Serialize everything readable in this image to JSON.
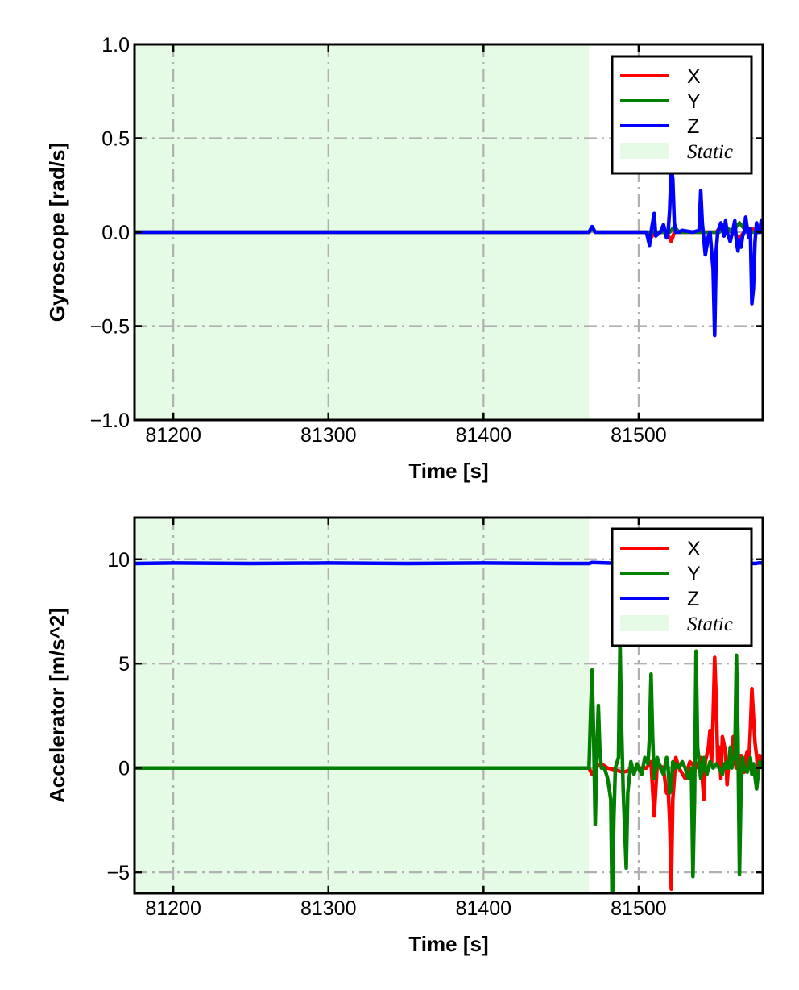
{
  "colors": {
    "X": "#ff0000",
    "Y": "#007f00",
    "Z": "#0000ff",
    "static_fill": "#e6fbe6",
    "grid": "#b0b0b0"
  },
  "chart_data": [
    {
      "type": "line",
      "xlabel": "Time [s]",
      "ylabel": "Gyroscope [rad/s]",
      "xlim": [
        81175,
        81580
      ],
      "ylim": [
        -1.0,
        1.0
      ],
      "xticks": [
        81200,
        81300,
        81400,
        81500
      ],
      "xtick_labels": [
        "81200",
        "81300",
        "81400",
        "81500"
      ],
      "yticks": [
        1.0,
        0.5,
        0.0,
        -0.5,
        -1.0
      ],
      "ytick_labels": [
        "1.0",
        "0.5",
        "0.0",
        "−0.5",
        "−1.0"
      ],
      "grid": true,
      "legend_position": "top-right",
      "legend": [
        "X",
        "Y",
        "Z",
        "Static"
      ],
      "static_region": [
        81175,
        81468
      ],
      "series": [
        {
          "name": "X",
          "color": "#ff0000",
          "x": [
            81175,
            81468,
            81470,
            81472,
            81505,
            81508,
            81510,
            81518,
            81521,
            81523,
            81540,
            81550,
            81553,
            81560,
            81565,
            81568,
            81572,
            81580
          ],
          "y": [
            0.0,
            0.0,
            0.02,
            0.0,
            0.0,
            -0.03,
            0.0,
            0.0,
            -0.05,
            0.0,
            0.0,
            0.0,
            0.03,
            0.0,
            -0.03,
            0.0,
            0.02,
            0.0
          ]
        },
        {
          "name": "Y",
          "color": "#007f00",
          "x": [
            81175,
            81468,
            81470,
            81472,
            81520,
            81523,
            81526,
            81552,
            81555,
            81560,
            81565,
            81570,
            81580
          ],
          "y": [
            0.0,
            0.0,
            0.02,
            0.0,
            0.0,
            0.03,
            0.0,
            0.0,
            0.04,
            0.0,
            0.05,
            0.0,
            0.0
          ]
        },
        {
          "name": "Z",
          "color": "#0000ff",
          "x": [
            81175,
            81468,
            81470,
            81472,
            81505,
            81507,
            81508,
            81510,
            81511,
            81514,
            81516,
            81518,
            81519,
            81520,
            81521,
            81522,
            81523,
            81524,
            81525,
            81526,
            81528,
            81535,
            81539,
            81540,
            81541,
            81543,
            81545,
            81546,
            81548,
            81549,
            81550,
            81551,
            81553,
            81555,
            81556,
            81557,
            81559,
            81561,
            81562,
            81563,
            81564,
            81565,
            81566,
            81567,
            81568,
            81569,
            81570,
            81571,
            81572,
            81573,
            81574,
            81575,
            81576,
            81577,
            81578,
            81579,
            81580
          ],
          "y": [
            0.0,
            0.0,
            0.03,
            0.0,
            0.0,
            -0.07,
            0.0,
            0.1,
            -0.02,
            0.0,
            0.04,
            -0.03,
            0.0,
            0.12,
            0.35,
            0.28,
            0.05,
            0.0,
            0.0,
            0.0,
            0.01,
            0.0,
            0.01,
            0.22,
            0.05,
            -0.12,
            -0.02,
            0.0,
            -0.2,
            -0.55,
            -0.1,
            0.0,
            0.05,
            -0.02,
            0.06,
            0.0,
            -0.05,
            0.02,
            0.06,
            -0.05,
            -0.1,
            -0.04,
            -0.08,
            -0.02,
            0.0,
            0.08,
            0.02,
            -0.03,
            0.02,
            -0.38,
            -0.3,
            -0.05,
            0.05,
            0.0,
            0.0,
            0.06,
            0.0
          ]
        }
      ]
    },
    {
      "type": "line",
      "xlabel": "Time [s]",
      "ylabel": "Accelerator [m/s^2]",
      "xlim": [
        81175,
        81580
      ],
      "ylim": [
        -6.0,
        12.0
      ],
      "xticks": [
        81200,
        81300,
        81400,
        81500
      ],
      "xtick_labels": [
        "81200",
        "81300",
        "81400",
        "81500"
      ],
      "yticks": [
        10,
        5,
        0,
        -5
      ],
      "ytick_labels": [
        "10",
        "5",
        "0",
        "−5"
      ],
      "grid": true,
      "legend_position": "top-right",
      "legend": [
        "X",
        "Y",
        "Z",
        "Static"
      ],
      "static_region": [
        81175,
        81468
      ],
      "series": [
        {
          "name": "X",
          "color": "#ff0000",
          "x": [
            81175,
            81468,
            81470,
            81472,
            81476,
            81480,
            81490,
            81500,
            81505,
            81508,
            81510,
            81512,
            81516,
            81518,
            81519,
            81520,
            81521,
            81522,
            81524,
            81526,
            81530,
            81533,
            81537,
            81540,
            81542,
            81543,
            81545,
            81546,
            81547,
            81548,
            81549,
            81550,
            81551,
            81552,
            81553,
            81554,
            81556,
            81557,
            81558,
            81560,
            81561,
            81562,
            81563,
            81564,
            81565,
            81566,
            81567,
            81568,
            81569,
            81570,
            81571,
            81572,
            81573,
            81574,
            81575,
            81576,
            81577,
            81578,
            81580
          ],
          "y": [
            0.0,
            0.0,
            -0.3,
            0.0,
            0.2,
            0.0,
            -0.2,
            0.0,
            0.0,
            0.3,
            -2.3,
            0.2,
            0.0,
            -1.2,
            -1.0,
            -2.5,
            -5.8,
            -1.5,
            0.5,
            0.0,
            -0.5,
            0.3,
            0.0,
            0.5,
            -1.5,
            0.3,
            1.0,
            1.8,
            0.2,
            2.5,
            5.3,
            3.2,
            0.3,
            1.0,
            -0.5,
            1.5,
            0.8,
            -0.8,
            0.2,
            0.5,
            1.5,
            0.8,
            0.0,
            0.5,
            -0.8,
            0.6,
            0.3,
            -0.2,
            0.5,
            0.8,
            0.3,
            1.8,
            3.8,
            2.5,
            1.2,
            0.6,
            -0.3,
            0.6,
            0.0
          ]
        },
        {
          "name": "Y",
          "color": "#007f00",
          "x": [
            81175,
            81468,
            81469,
            81470,
            81471,
            81472,
            81473,
            81474,
            81475,
            81476,
            81478,
            81480,
            81482,
            81483,
            81484,
            81485,
            81487,
            81488,
            81489,
            81490,
            81492,
            81493,
            81495,
            81497,
            81499,
            81500,
            81502,
            81504,
            81506,
            81507,
            81508,
            81509,
            81510,
            81512,
            81514,
            81516,
            81518,
            81519,
            81520,
            81521,
            81522,
            81523,
            81524,
            81526,
            81528,
            81530,
            81532,
            81534,
            81535,
            81536,
            81537,
            81538,
            81540,
            81542,
            81543,
            81544,
            81546,
            81548,
            81550,
            81552,
            81554,
            81555,
            81556,
            81557,
            81558,
            81559,
            81560,
            81562,
            81563,
            81564,
            81565,
            81566,
            81567,
            81568,
            81570,
            81572,
            81573,
            81574,
            81576,
            81578,
            81580
          ],
          "y": [
            0.0,
            0.0,
            2.5,
            4.7,
            1.5,
            -2.7,
            0.5,
            3.0,
            0.8,
            0.0,
            0.0,
            -0.5,
            -1.5,
            -7.0,
            -2.5,
            0.0,
            0.5,
            6.0,
            2.0,
            -1.0,
            -4.8,
            -1.2,
            0.3,
            -0.3,
            0.2,
            0.0,
            -0.3,
            0.5,
            0.2,
            1.5,
            4.5,
            1.5,
            -0.5,
            0.5,
            0.0,
            -0.3,
            0.5,
            0.0,
            -1.2,
            -1.0,
            0.3,
            0.0,
            0.2,
            0.0,
            0.3,
            0.0,
            -0.5,
            0.0,
            -5.2,
            -1.5,
            5.6,
            1.0,
            -0.5,
            0.5,
            0.0,
            -0.3,
            0.3,
            0.0,
            0.2,
            0.0,
            -0.3,
            0.2,
            0.0,
            0.3,
            0.0,
            1.0,
            0.0,
            0.5,
            5.4,
            1.5,
            -5.1,
            -1.0,
            0.5,
            0.0,
            -0.2,
            0.5,
            -0.3,
            0.2,
            -1.0,
            0.3,
            0.0
          ]
        },
        {
          "name": "Z",
          "color": "#0000ff",
          "x": [
            81175,
            81200,
            81250,
            81300,
            81350,
            81400,
            81450,
            81468,
            81470,
            81480,
            81490,
            81500,
            81510,
            81520,
            81530,
            81540,
            81550,
            81560,
            81570,
            81575,
            81578,
            81580
          ],
          "y": [
            9.8,
            9.82,
            9.8,
            9.82,
            9.8,
            9.82,
            9.8,
            9.8,
            9.85,
            9.82,
            9.8,
            9.82,
            9.8,
            9.8,
            9.82,
            9.8,
            9.82,
            9.8,
            9.82,
            9.8,
            9.83,
            9.82
          ]
        }
      ]
    }
  ]
}
